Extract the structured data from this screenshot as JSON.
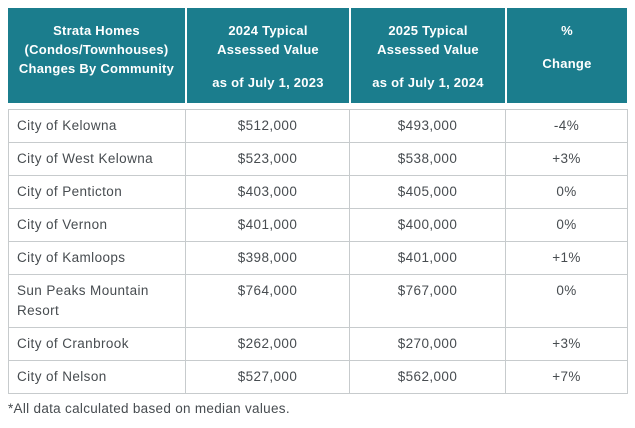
{
  "chart_data": {
    "type": "table",
    "title": "Strata Homes (Condos/Townhouses) Changes By Community",
    "columns": [
      "Strata Homes (Condos/Townhouses) Changes By Community",
      "2024 Typical Assessed Value as of July 1, 2023",
      "2025 Typical Assessed Value as of July 1, 2024",
      "% Change"
    ],
    "rows": [
      {
        "community": "City of Kelowna",
        "assessed_2024": "$512,000",
        "assessed_2025": "$493,000",
        "pct_change": "-4%"
      },
      {
        "community": "City of West Kelowna",
        "assessed_2024": "$523,000",
        "assessed_2025": "$538,000",
        "pct_change": "+3%"
      },
      {
        "community": "City of Penticton",
        "assessed_2024": "$403,000",
        "assessed_2025": "$405,000",
        "pct_change": "0%"
      },
      {
        "community": "City of Vernon",
        "assessed_2024": "$401,000",
        "assessed_2025": "$400,000",
        "pct_change": "0%"
      },
      {
        "community": "City of Kamloops",
        "assessed_2024": "$398,000",
        "assessed_2025": "$401,000",
        "pct_change": "+1%"
      },
      {
        "community": "Sun Peaks Mountain Resort",
        "assessed_2024": "$764,000",
        "assessed_2025": "$767,000",
        "pct_change": "0%"
      },
      {
        "community": "City of Cranbrook",
        "assessed_2024": "$262,000",
        "assessed_2025": "$270,000",
        "pct_change": "+3%"
      },
      {
        "community": "City of Nelson",
        "assessed_2024": "$527,000",
        "assessed_2025": "$562,000",
        "pct_change": "+7%"
      }
    ],
    "footnote": "*All data calculated based on median values."
  },
  "header": {
    "col1": {
      "line1": "Strata Homes",
      "line2": "(Condos/Townhouses)",
      "line3": "Changes By Community"
    },
    "col2": {
      "line1": "2024 Typical",
      "line2": "Assessed Value",
      "sub": "as of July 1, 2023"
    },
    "col3": {
      "line1": "2025 Typical",
      "line2": "Assessed  Value",
      "sub": "as of July 1, 2024"
    },
    "col4": {
      "line1": "%",
      "line2": "Change"
    }
  },
  "colors": {
    "header_bg": "#1B7D8D",
    "header_text": "#FFFFFF",
    "body_text": "#474C50",
    "border": "#C7CBCD"
  }
}
